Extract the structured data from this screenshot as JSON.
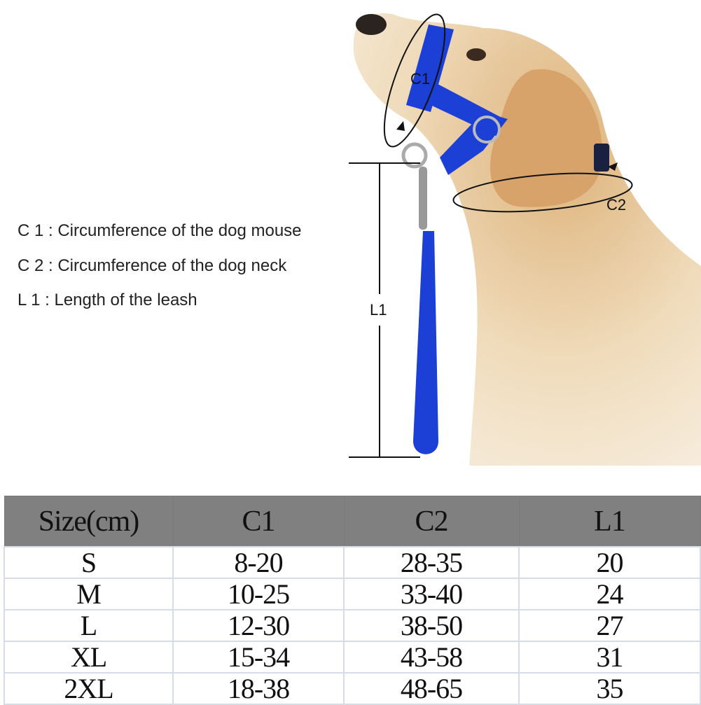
{
  "diagram": {
    "labels": {
      "c1": "C1",
      "c2": "C2",
      "l1": "L1"
    },
    "colors": {
      "harness": "#1c3fd6",
      "fur": "#e6c79a",
      "header": "#808080"
    }
  },
  "legend": [
    "C 1 : Circumference of the dog mouse",
    "C 2 : Circumference of the dog neck",
    "L 1 : Length of the leash"
  ],
  "table": {
    "headers": [
      "Size(cm)",
      "C1",
      "C2",
      "L1"
    ],
    "rows": [
      [
        "S",
        "8-20",
        "28-35",
        "20"
      ],
      [
        "M",
        "10-25",
        "33-40",
        "24"
      ],
      [
        "L",
        "12-30",
        "38-50",
        "27"
      ],
      [
        "XL",
        "15-34",
        "43-58",
        "31"
      ],
      [
        "2XL",
        "18-38",
        "48-65",
        "35"
      ]
    ]
  }
}
